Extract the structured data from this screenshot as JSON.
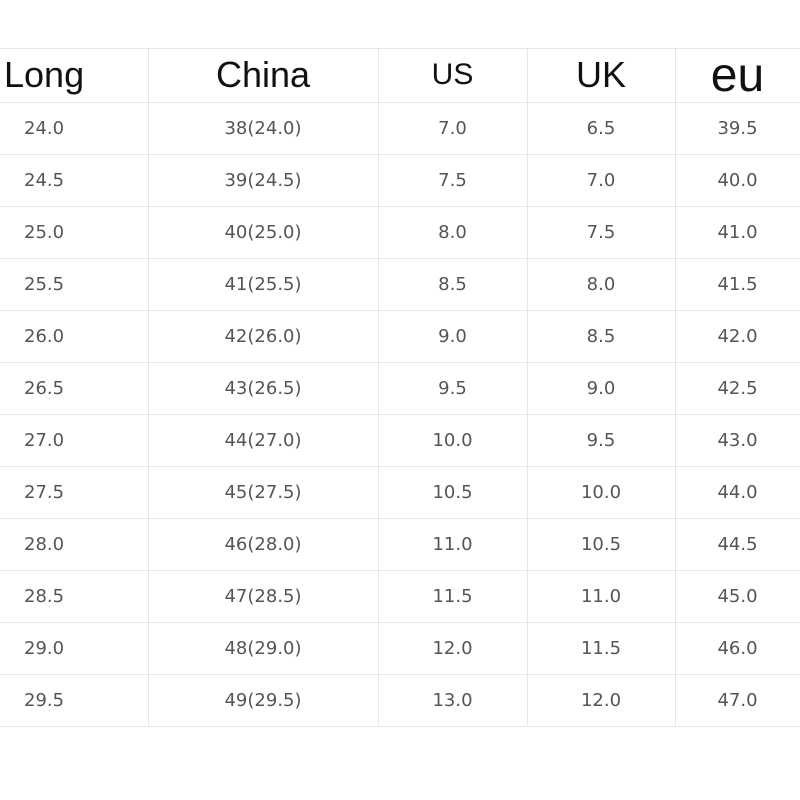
{
  "table": {
    "header": [
      "Long",
      "China",
      "US",
      "UK",
      "eu"
    ],
    "rows": [
      [
        "24.0",
        "38(24.0)",
        "7.0",
        "6.5",
        "39.5"
      ],
      [
        "24.5",
        "39(24.5)",
        "7.5",
        "7.0",
        "40.0"
      ],
      [
        "25.0",
        "40(25.0)",
        "8.0",
        "7.5",
        "41.0"
      ],
      [
        "25.5",
        "41(25.5)",
        "8.5",
        "8.0",
        "41.5"
      ],
      [
        "26.0",
        "42(26.0)",
        "9.0",
        "8.5",
        "42.0"
      ],
      [
        "26.5",
        "43(26.5)",
        "9.5",
        "9.0",
        "42.5"
      ],
      [
        "27.0",
        "44(27.0)",
        "10.0",
        "9.5",
        "43.0"
      ],
      [
        "27.5",
        "45(27.5)",
        "10.5",
        "10.0",
        "44.0"
      ],
      [
        "28.0",
        "46(28.0)",
        "11.0",
        "10.5",
        "44.5"
      ],
      [
        "28.5",
        "47(28.5)",
        "11.5",
        "11.0",
        "45.0"
      ],
      [
        "29.0",
        "48(29.0)",
        "12.0",
        "11.5",
        "46.0"
      ],
      [
        "29.5",
        "49(29.5)",
        "13.0",
        "12.0",
        "47.0"
      ]
    ]
  }
}
